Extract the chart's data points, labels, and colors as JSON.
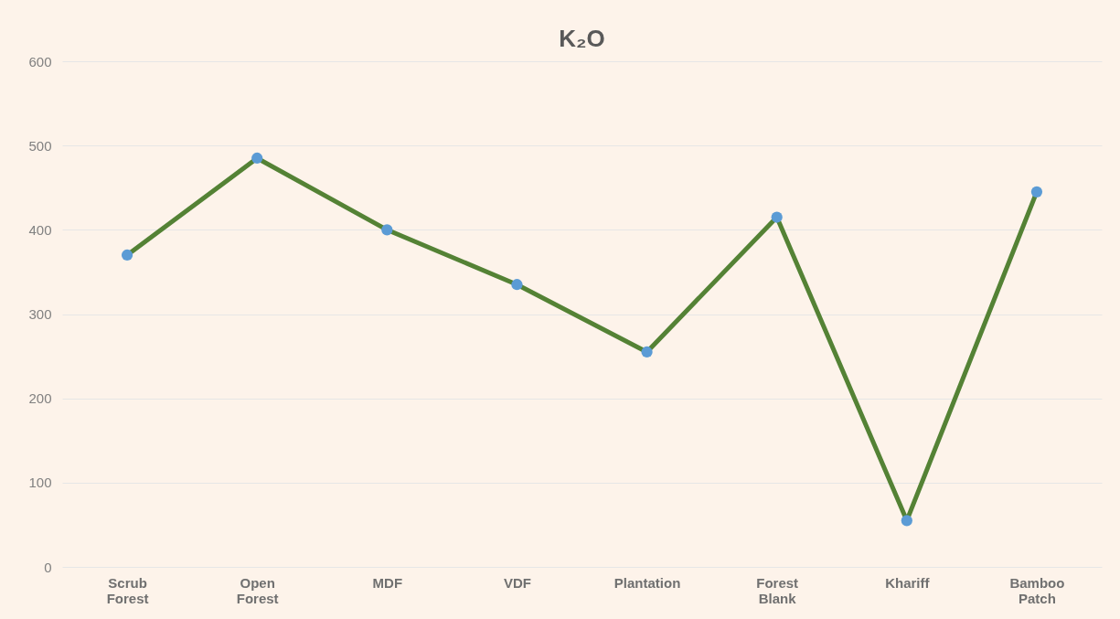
{
  "chart_data": {
    "type": "line",
    "title": "K₂O",
    "categories": [
      "Scrub Forest",
      "Open Forest",
      "MDF",
      "VDF",
      "Plantation",
      "Forest Blank",
      "Khariff",
      "Bamboo Patch"
    ],
    "series": [
      {
        "color": "#548235",
        "values": [
          370,
          485,
          400,
          335,
          255,
          415,
          55,
          445
        ]
      }
    ],
    "marker": "circle",
    "ylim": [
      0,
      600
    ],
    "yticks": [
      0,
      100,
      200,
      300,
      400,
      500,
      600
    ],
    "grid": "y"
  }
}
